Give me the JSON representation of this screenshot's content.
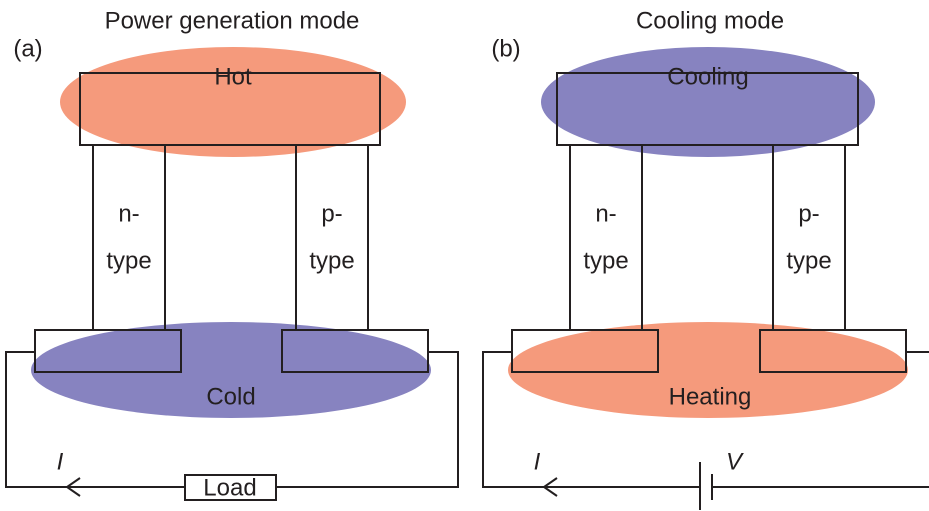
{
  "panels": [
    {
      "tag": "(a)",
      "title": "Power generation mode",
      "top": "Hot",
      "bottom": "Cold",
      "n_leg": [
        "n-",
        "type"
      ],
      "p_leg": [
        "p-",
        "type"
      ],
      "current": "I",
      "element": "Load"
    },
    {
      "tag": "(b)",
      "title": "Cooling mode",
      "top": "Cooling",
      "bottom": "Heating",
      "n_leg": [
        "n-",
        "type"
      ],
      "p_leg": [
        "p-",
        "type"
      ],
      "current": "I",
      "element": "V"
    }
  ]
}
